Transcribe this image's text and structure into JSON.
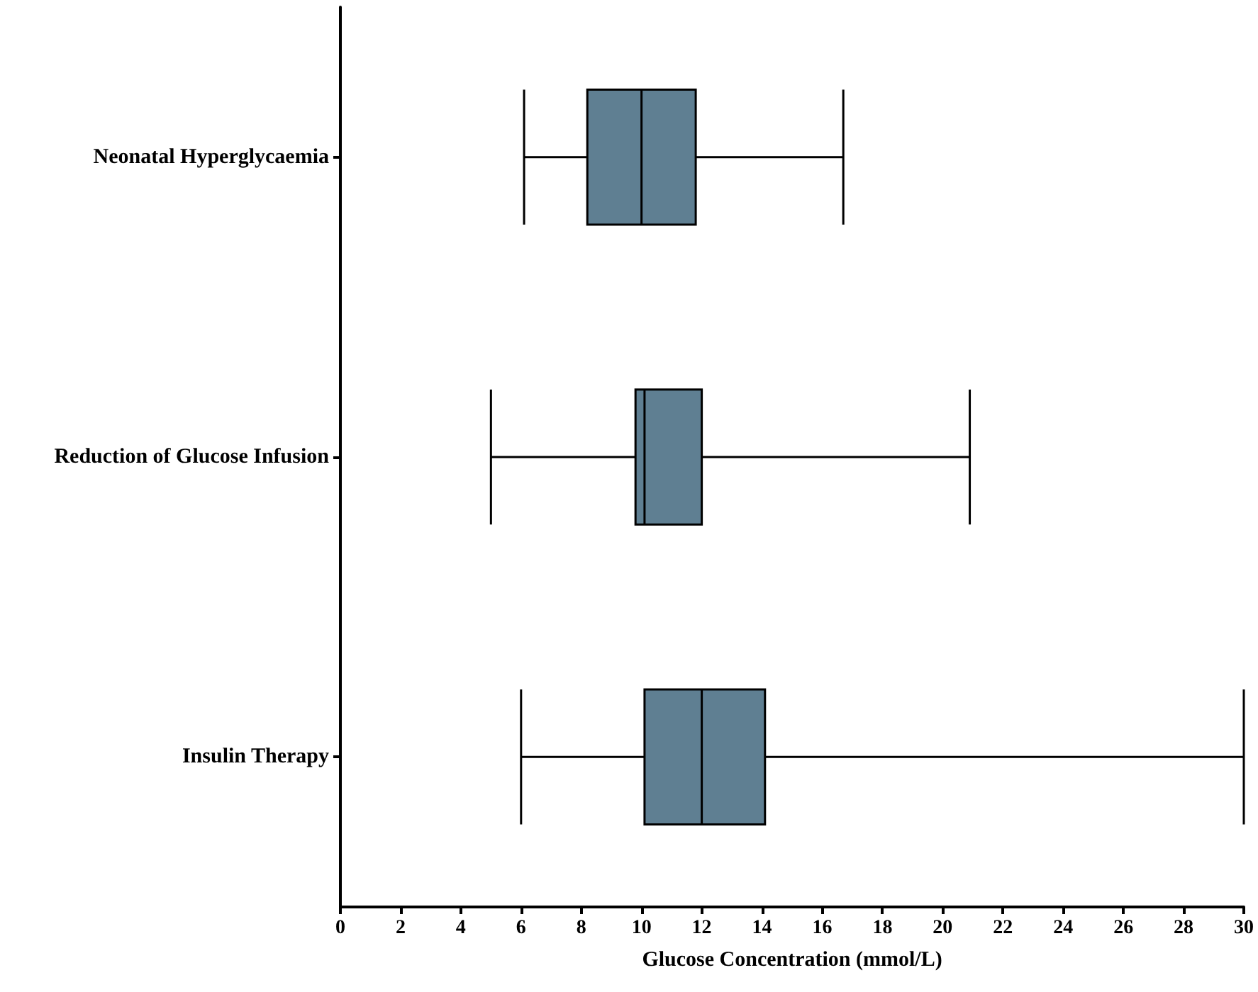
{
  "chart_data": {
    "type": "box",
    "orientation": "horizontal",
    "xlabel": "Glucose Concentration (mmol/L)",
    "categories": [
      "Neonatal Hyperglycaemia",
      "Reduction of Glucose Infusion",
      "Insulin Therapy"
    ],
    "color": "#5f7f92",
    "boxes": [
      {
        "low": 6.1,
        "q1": 8.2,
        "median": 10.0,
        "q3": 11.8,
        "high": 16.7
      },
      {
        "low": 5.0,
        "q1": 9.8,
        "median": 10.1,
        "q3": 12.0,
        "high": 20.9
      },
      {
        "low": 6.0,
        "q1": 10.1,
        "median": 12.0,
        "q3": 14.1,
        "high": 30
      }
    ],
    "xlim": [
      0,
      30
    ],
    "xticks": [
      0,
      2,
      4,
      6,
      8,
      10,
      12,
      14,
      16,
      18,
      20,
      22,
      24,
      26,
      28,
      30
    ],
    "grid": false
  }
}
